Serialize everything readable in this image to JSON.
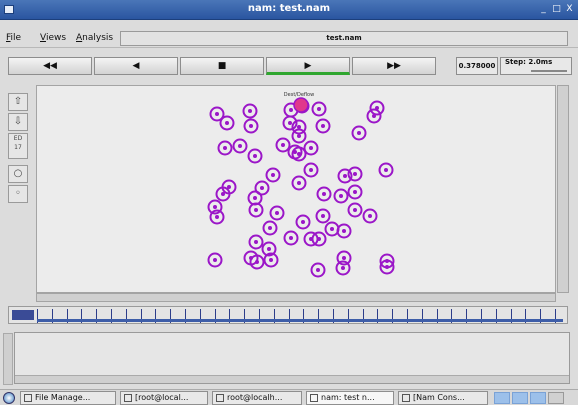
{
  "window": {
    "title": "nam: test.nam",
    "buttons": [
      "_",
      "□",
      "X"
    ]
  },
  "menu": {
    "items": [
      {
        "label": "File",
        "underline": "F",
        "rest": "ile"
      },
      {
        "label": "Views",
        "underline": "V",
        "rest": "iews"
      },
      {
        "label": "Analysis",
        "underline": "A",
        "rest": "nalysis"
      }
    ],
    "file_label": "test.nam"
  },
  "controls": {
    "rewind": "◀◀",
    "back": "◀",
    "stop": "■",
    "play": "▶",
    "fast_forward": "▶▶",
    "time": "0.378000",
    "step": "Step: 2.0ms"
  },
  "sidebar": {
    "zoom_in": "⇧",
    "zoom_out": "⇩",
    "edit": "ED\n17",
    "node": "○",
    "link": "◦"
  },
  "canvas": {
    "event_label": "Dest/Deflow",
    "node_color": "#9b16c8",
    "highlight_color": "#e0388c"
  },
  "taskbar": {
    "items": [
      {
        "label": "File Manage..."
      },
      {
        "label": "[root@local..."
      },
      {
        "label": "root@localh..."
      },
      {
        "label": "nam: test n..."
      },
      {
        "label": "[Nam Cons..."
      }
    ]
  }
}
